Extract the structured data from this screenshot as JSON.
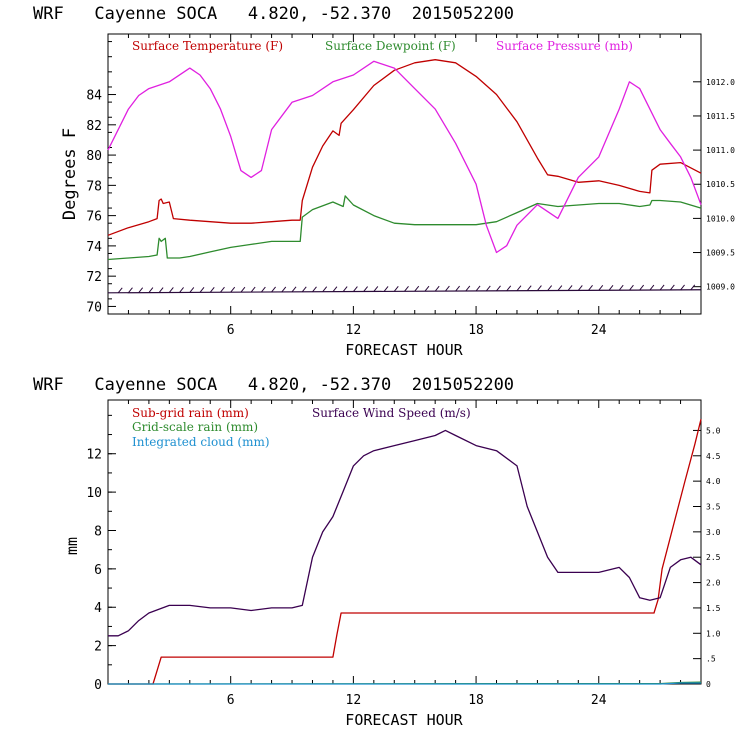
{
  "chart_data": [
    {
      "type": "line",
      "title": "WRF   Cayenne SOCA   4.820, -52.370  2015052200",
      "xlabel": "FORECAST HOUR",
      "ylabel": "Degrees F",
      "xlim": [
        0,
        29
      ],
      "xticks": [
        6,
        12,
        18,
        24
      ],
      "ylim": [
        69.5,
        88
      ],
      "yticks": [
        70,
        72,
        74,
        76,
        78,
        80,
        82,
        84
      ],
      "y2lim": [
        1008.6,
        1012.7
      ],
      "y2ticks": [
        "1009.0",
        "1009.5",
        "1010.0",
        "1010.5",
        "1011.0",
        "1011.5",
        "1012.0"
      ],
      "legend": [
        "Surface Temperature (F)",
        "Surface Dewpoint (F)",
        "Surface Pressure (mb)"
      ],
      "series": [
        {
          "name": "Surface Temperature (F)",
          "color": "#c00000",
          "axis": "left",
          "x": [
            0,
            1,
            2,
            2.4,
            2.5,
            2.6,
            2.7,
            3.0,
            3.2,
            4,
            5,
            6,
            7,
            8,
            9,
            9.4,
            9.5,
            10,
            10.5,
            11,
            11.3,
            11.4,
            12,
            13,
            14,
            15,
            16,
            17,
            18,
            19,
            20,
            21,
            21.5,
            22,
            23,
            24,
            25,
            26,
            26.5,
            26.6,
            27,
            28,
            29
          ],
          "values": [
            74.7,
            75.2,
            75.6,
            75.8,
            77.0,
            77.1,
            76.8,
            76.9,
            75.8,
            75.7,
            75.6,
            75.5,
            75.5,
            75.6,
            75.7,
            75.7,
            77.0,
            79.2,
            80.6,
            81.6,
            81.3,
            82.1,
            83.0,
            84.6,
            85.6,
            86.1,
            86.3,
            86.1,
            85.2,
            84.0,
            82.2,
            79.8,
            78.7,
            78.6,
            78.2,
            78.3,
            78.0,
            77.6,
            77.5,
            79.0,
            79.4,
            79.5,
            78.8
          ]
        },
        {
          "name": "Surface Dewpoint (F)",
          "color": "#2e8b2e",
          "axis": "left",
          "x": [
            0,
            1,
            2,
            2.4,
            2.5,
            2.6,
            2.8,
            2.9,
            3.5,
            4,
            5,
            6,
            7,
            8,
            9,
            9.4,
            9.5,
            10,
            11,
            11.5,
            11.6,
            12,
            13,
            14,
            15,
            16,
            17,
            18,
            19,
            20,
            21,
            22,
            23,
            24,
            25,
            26,
            26.5,
            26.6,
            27,
            28,
            29
          ],
          "values": [
            73.1,
            73.2,
            73.3,
            73.4,
            74.5,
            74.3,
            74.5,
            73.2,
            73.2,
            73.3,
            73.6,
            73.9,
            74.1,
            74.3,
            74.3,
            74.3,
            75.9,
            76.4,
            76.9,
            76.6,
            77.3,
            76.7,
            76.0,
            75.5,
            75.4,
            75.4,
            75.4,
            75.4,
            75.6,
            76.2,
            76.8,
            76.6,
            76.7,
            76.8,
            76.8,
            76.6,
            76.7,
            77.0,
            77.0,
            76.9,
            76.5
          ]
        },
        {
          "name": "Surface Pressure (mb)",
          "color": "#e020e0",
          "axis": "right",
          "x": [
            0,
            0.5,
            1,
            1.5,
            2,
            3,
            4,
            4.5,
            5,
            5.5,
            6,
            6.5,
            7,
            7.5,
            8,
            9,
            10,
            11,
            12,
            13,
            14,
            15,
            16,
            17,
            18,
            18.5,
            19,
            19.5,
            20,
            21,
            22,
            22.5,
            23,
            24,
            25,
            25.5,
            26,
            27,
            27.5,
            28,
            28.5,
            29
          ],
          "values": [
            1011.0,
            1011.3,
            1011.6,
            1011.8,
            1011.9,
            1012.0,
            1012.2,
            1012.1,
            1011.9,
            1011.6,
            1011.2,
            1010.7,
            1010.6,
            1010.7,
            1011.3,
            1011.7,
            1011.8,
            1012.0,
            1012.1,
            1012.3,
            1012.2,
            1011.9,
            1011.6,
            1011.1,
            1010.5,
            1009.9,
            1009.5,
            1009.6,
            1009.9,
            1010.2,
            1010.0,
            1010.3,
            1010.6,
            1010.9,
            1011.6,
            1012.0,
            1011.9,
            1011.3,
            1011.1,
            1010.9,
            1010.6,
            1010.2
          ]
        },
        {
          "name": "Wind barbs",
          "color": "#2a0a3a",
          "axis": "left",
          "x": [
            0,
            29
          ],
          "values": [
            70.9,
            71.1
          ]
        }
      ]
    },
    {
      "type": "line",
      "title": "WRF   Cayenne SOCA   4.820, -52.370  2015052200",
      "xlabel": "FORECAST HOUR",
      "ylabel": "mm",
      "xlim": [
        0,
        29
      ],
      "xticks": [
        6,
        12,
        18,
        24
      ],
      "ylim": [
        0,
        14.8
      ],
      "yticks": [
        0,
        2,
        4,
        6,
        8,
        10,
        12
      ],
      "y2lim": [
        0,
        5.6
      ],
      "y2ticks": [
        "0",
        ".5",
        "1.0",
        "1.5",
        "2.0",
        "2.5",
        "3.0",
        "3.5",
        "4.0",
        "4.5",
        "5.0"
      ],
      "legend": [
        "Sub-grid rain (mm)",
        "Grid-scale rain (mm)",
        "Integrated cloud (mm)",
        "Surface Wind Speed (m/s)"
      ],
      "series": [
        {
          "name": "Sub-grid rain (mm)",
          "color": "#c00000",
          "axis": "left",
          "x": [
            0,
            2.2,
            2.4,
            2.6,
            11.0,
            11.2,
            11.4,
            26.7,
            26.9,
            27.1,
            28.2,
            28.7,
            29
          ],
          "values": [
            0,
            0,
            0.7,
            1.4,
            1.4,
            2.6,
            3.7,
            3.7,
            4.4,
            6.0,
            10.5,
            12.5,
            13.8
          ]
        },
        {
          "name": "Grid-scale rain (mm)",
          "color": "#2e8b2e",
          "axis": "left",
          "x": [
            0,
            27,
            28,
            29
          ],
          "values": [
            0,
            0.02,
            0.08,
            0.1
          ]
        },
        {
          "name": "Integrated cloud (mm)",
          "color": "#1e90d0",
          "axis": "left",
          "x": [
            0,
            27,
            28,
            29
          ],
          "values": [
            0,
            0,
            0.05,
            0.05
          ]
        },
        {
          "name": "Surface Wind Speed (m/s)",
          "color": "#3a0050",
          "axis": "right",
          "x": [
            0,
            0.5,
            1,
            1.5,
            2,
            3,
            4,
            5,
            6,
            7,
            8,
            9,
            9.5,
            10,
            10.5,
            11,
            11.5,
            12,
            12.5,
            13,
            14,
            15,
            16,
            16.5,
            17,
            18,
            19,
            20,
            20.5,
            21,
            21.5,
            22,
            23,
            24,
            25,
            25.5,
            26,
            26.5,
            27,
            27.5,
            28,
            28.5,
            29
          ],
          "values": [
            0.95,
            0.95,
            1.05,
            1.25,
            1.4,
            1.55,
            1.55,
            1.5,
            1.5,
            1.45,
            1.5,
            1.5,
            1.55,
            2.5,
            3.0,
            3.3,
            3.8,
            4.3,
            4.5,
            4.6,
            4.7,
            4.8,
            4.9,
            5.0,
            4.9,
            4.7,
            4.6,
            4.3,
            3.5,
            3.0,
            2.5,
            2.2,
            2.2,
            2.2,
            2.3,
            2.1,
            1.7,
            1.65,
            1.7,
            2.3,
            2.45,
            2.5,
            2.35
          ]
        }
      ]
    }
  ]
}
